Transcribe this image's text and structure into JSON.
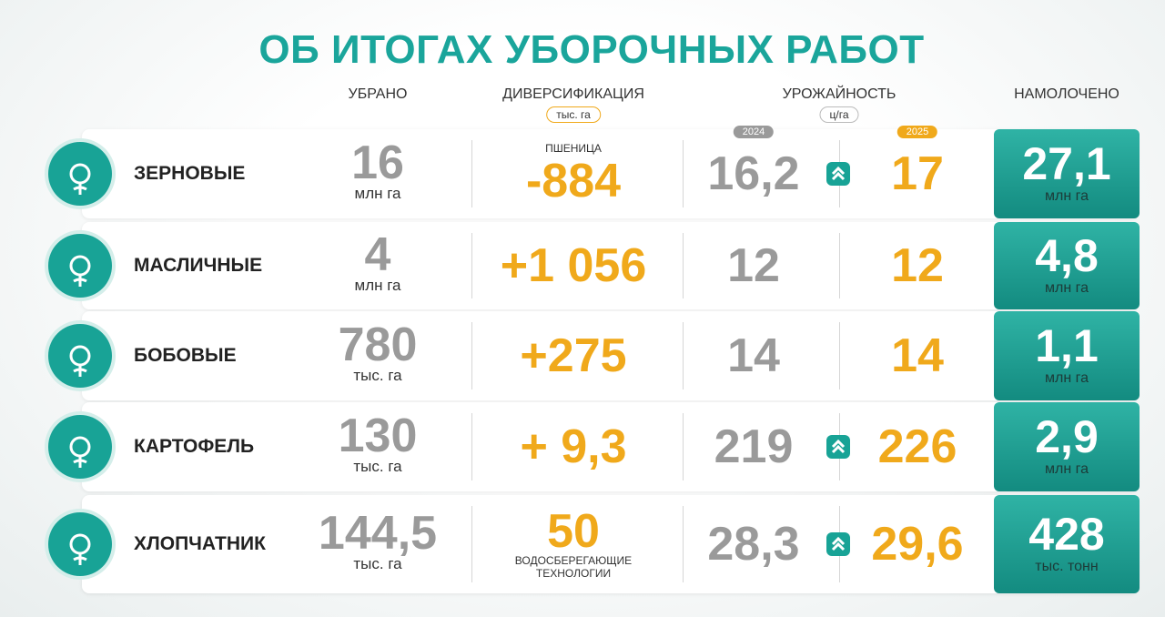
{
  "title": "ОБ ИТОГАХ УБОРОЧНЫХ РАБОТ",
  "columns": {
    "harvested": "УБРАНО",
    "diversification": "ДИВЕРСИФИКАЦИЯ",
    "diversification_unit": "тыс. га",
    "yield": "УРОЖАЙНОСТЬ",
    "yield_unit": "ц/га",
    "year_prev": "2024",
    "year_curr": "2025",
    "threshed": "НАМОЛОЧЕНО"
  },
  "rows": [
    {
      "crop": "ЗЕРНОВЫЕ",
      "harvested": "16",
      "harvested_unit": "млн га",
      "diversification": "-884",
      "note": "ПШЕНИЦА",
      "note_position": "above",
      "yield_prev": "16,2",
      "yield_curr": "17",
      "yield_up": true,
      "threshed": "27,1",
      "threshed_unit": "млн га"
    },
    {
      "crop": "МАСЛИЧНЫЕ",
      "harvested": "4",
      "harvested_unit": "млн га",
      "diversification": "+1 056",
      "yield_prev": "12",
      "yield_curr": "12",
      "yield_up": false,
      "threshed": "4,8",
      "threshed_unit": "млн га"
    },
    {
      "crop": "БОБОВЫЕ",
      "harvested": "780",
      "harvested_unit": "тыс. га",
      "diversification": "+275",
      "yield_prev": "14",
      "yield_curr": "14",
      "yield_up": false,
      "threshed": "1,1",
      "threshed_unit": "млн га"
    },
    {
      "crop": "КАРТОФЕЛЬ",
      "harvested": "130",
      "harvested_unit": "тыс. га",
      "diversification": "+ 9,3",
      "yield_prev": "219",
      "yield_curr": "226",
      "yield_up": true,
      "threshed": "2,9",
      "threshed_unit": "млн га"
    },
    {
      "crop": "ХЛОПЧАТНИК",
      "harvested": "144,5",
      "harvested_unit": "тыс. га",
      "diversification": "50",
      "note": "ВОДОСБЕРЕГАЮЩИЕ ТЕХНОЛОГИИ",
      "note_position": "below",
      "yield_prev": "28,3",
      "yield_curr": "29,6",
      "yield_up": true,
      "threshed": "428",
      "threshed_unit": "тыс. тонн"
    }
  ]
}
